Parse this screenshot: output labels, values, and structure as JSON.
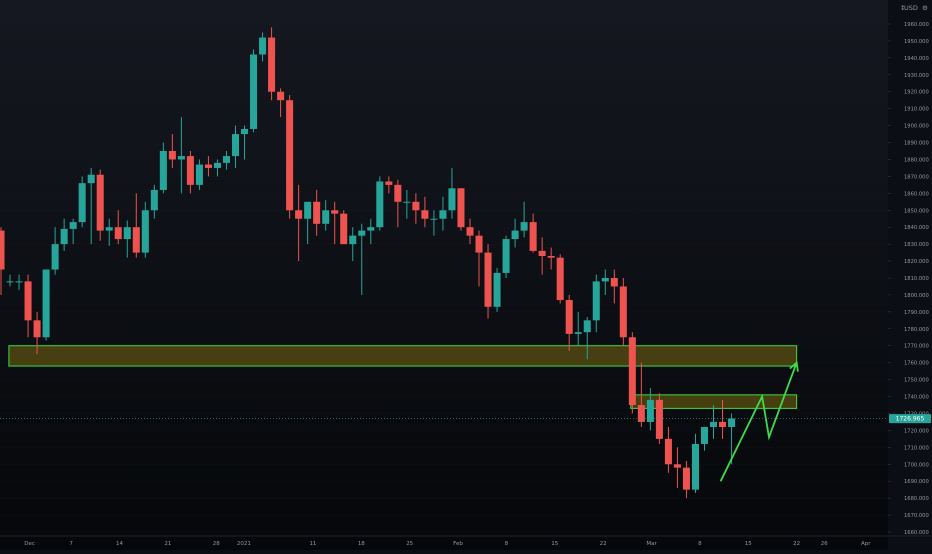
{
  "colors": {
    "background_top": "#151820",
    "background_bottom": "#05070a",
    "bull": "#26a69a",
    "bear": "#ef5350",
    "zone_fill": "#7a6a10",
    "zone_stroke": "#3ddc4a",
    "arrow": "#3ddc4a",
    "price_tag": "#26a69a",
    "axis_text": "#9598a1",
    "grid": "#1c2030"
  },
  "header": {
    "currency_label": "USD"
  },
  "price_tag": {
    "value": "1726.965"
  },
  "chart_data": {
    "type": "candlestick",
    "title": "",
    "y_unit": "USD",
    "ylim": [
      1655,
      1965
    ],
    "y_ticks": [
      1660,
      1670,
      1680,
      1690,
      1700,
      1710,
      1720,
      1730,
      1740,
      1750,
      1760,
      1770,
      1780,
      1790,
      1800,
      1810,
      1820,
      1830,
      1840,
      1850,
      1860,
      1870,
      1880,
      1890,
      1900,
      1910,
      1920,
      1930,
      1940,
      1950,
      1960
    ],
    "y_tick_labels": [
      "1660.000",
      "1670.000",
      "1680.000",
      "1690.000",
      "1700.000",
      "1710.000",
      "1720.000",
      "1730.000",
      "1740.000",
      "1750.000",
      "1760.000",
      "1770.000",
      "1780.000",
      "1790.000",
      "1800.000",
      "1810.000",
      "1820.000",
      "1830.000",
      "1840.000",
      "1850.000",
      "1860.000",
      "1870.000",
      "1880.000",
      "1890.000",
      "1900.000",
      "1910.000",
      "1920.000",
      "1930.000",
      "1940.000",
      "1950.000",
      "1960.000"
    ],
    "x_range": [
      "2020-11-27",
      "2021-04-03"
    ],
    "x_ticks": [
      {
        "date": "2020-12-01",
        "label": "Dec"
      },
      {
        "date": "2020-12-07",
        "label": "7"
      },
      {
        "date": "2020-12-14",
        "label": "14"
      },
      {
        "date": "2020-12-21",
        "label": "21"
      },
      {
        "date": "2020-12-28",
        "label": "28"
      },
      {
        "date": "2021-01-01",
        "label": "2021"
      },
      {
        "date": "2021-01-11",
        "label": "11"
      },
      {
        "date": "2021-01-18",
        "label": "18"
      },
      {
        "date": "2021-01-25",
        "label": "25"
      },
      {
        "date": "2021-02-01",
        "label": "Feb"
      },
      {
        "date": "2021-02-08",
        "label": "8"
      },
      {
        "date": "2021-02-15",
        "label": "15"
      },
      {
        "date": "2021-02-22",
        "label": "22"
      },
      {
        "date": "2021-03-01",
        "label": "Mar"
      },
      {
        "date": "2021-03-08",
        "label": "8"
      },
      {
        "date": "2021-03-15",
        "label": "15"
      },
      {
        "date": "2021-03-22",
        "label": "22"
      },
      {
        "date": "2021-03-26",
        "label": "26"
      },
      {
        "date": "2021-04-01",
        "label": "Apr"
      }
    ],
    "current_price": 1726.965,
    "candles": [
      {
        "date": "2020-11-27",
        "o": 1838,
        "h": 1840,
        "l": 1800,
        "c": 1815
      },
      {
        "date": "2020-11-30",
        "o": 1808,
        "h": 1812,
        "l": 1805,
        "c": 1808
      },
      {
        "date": "2020-12-01",
        "o": 1808,
        "h": 1812,
        "l": 1803,
        "c": 1808
      },
      {
        "date": "2020-12-01",
        "o": 1808,
        "h": 1812,
        "l": 1775,
        "c": 1785
      },
      {
        "date": "2020-12-02",
        "o": 1785,
        "h": 1790,
        "l": 1765,
        "c": 1775
      },
      {
        "date": "2020-12-03",
        "o": 1775,
        "h": 1815,
        "l": 1773,
        "c": 1815
      },
      {
        "date": "2020-12-04",
        "o": 1815,
        "h": 1840,
        "l": 1812,
        "c": 1830
      },
      {
        "date": "2020-12-04",
        "o": 1830,
        "h": 1845,
        "l": 1826,
        "c": 1839
      },
      {
        "date": "2020-12-07",
        "o": 1839,
        "h": 1845,
        "l": 1830,
        "c": 1843
      },
      {
        "date": "2020-12-08",
        "o": 1843,
        "h": 1870,
        "l": 1840,
        "c": 1866
      },
      {
        "date": "2020-12-09",
        "o": 1866,
        "h": 1875,
        "l": 1830,
        "c": 1871
      },
      {
        "date": "2020-12-10",
        "o": 1871,
        "h": 1874,
        "l": 1832,
        "c": 1838
      },
      {
        "date": "2020-12-11",
        "o": 1838,
        "h": 1845,
        "l": 1829,
        "c": 1840
      },
      {
        "date": "2020-12-11",
        "o": 1840,
        "h": 1850,
        "l": 1830,
        "c": 1833
      },
      {
        "date": "2020-12-14",
        "o": 1833,
        "h": 1844,
        "l": 1822,
        "c": 1840
      },
      {
        "date": "2020-12-15",
        "o": 1840,
        "h": 1860,
        "l": 1822,
        "c": 1825
      },
      {
        "date": "2020-12-16",
        "o": 1825,
        "h": 1855,
        "l": 1822,
        "c": 1850
      },
      {
        "date": "2020-12-17",
        "o": 1850,
        "h": 1865,
        "l": 1845,
        "c": 1862
      },
      {
        "date": "2020-12-18",
        "o": 1862,
        "h": 1890,
        "l": 1860,
        "c": 1885
      },
      {
        "date": "2020-12-18",
        "o": 1885,
        "h": 1895,
        "l": 1875,
        "c": 1880
      },
      {
        "date": "2020-12-21",
        "o": 1880,
        "h": 1905,
        "l": 1860,
        "c": 1882
      },
      {
        "date": "2020-12-22",
        "o": 1882,
        "h": 1885,
        "l": 1860,
        "c": 1865
      },
      {
        "date": "2020-12-23",
        "o": 1865,
        "h": 1880,
        "l": 1862,
        "c": 1877
      },
      {
        "date": "2020-12-24",
        "o": 1877,
        "h": 1882,
        "l": 1870,
        "c": 1875
      },
      {
        "date": "2020-12-25",
        "o": 1875,
        "h": 1880,
        "l": 1870,
        "c": 1878
      },
      {
        "date": "2020-12-25",
        "o": 1878,
        "h": 1885,
        "l": 1874,
        "c": 1882
      },
      {
        "date": "2020-12-28",
        "o": 1882,
        "h": 1900,
        "l": 1875,
        "c": 1895
      },
      {
        "date": "2020-12-29",
        "o": 1895,
        "h": 1900,
        "l": 1880,
        "c": 1898
      },
      {
        "date": "2020-12-30",
        "o": 1898,
        "h": 1945,
        "l": 1896,
        "c": 1942
      },
      {
        "date": "2020-12-31",
        "o": 1942,
        "h": 1955,
        "l": 1938,
        "c": 1952
      },
      {
        "date": "2021-01-01",
        "o": 1952,
        "h": 1958,
        "l": 1915,
        "c": 1920
      },
      {
        "date": "2021-01-04",
        "o": 1920,
        "h": 1922,
        "l": 1905,
        "c": 1915
      },
      {
        "date": "2021-01-05",
        "o": 1915,
        "h": 1918,
        "l": 1845,
        "c": 1850
      },
      {
        "date": "2021-01-06",
        "o": 1850,
        "h": 1865,
        "l": 1820,
        "c": 1845
      },
      {
        "date": "2021-01-07",
        "o": 1845,
        "h": 1855,
        "l": 1830,
        "c": 1855
      },
      {
        "date": "2021-01-08",
        "o": 1855,
        "h": 1862,
        "l": 1835,
        "c": 1842
      },
      {
        "date": "2021-01-11",
        "o": 1842,
        "h": 1856,
        "l": 1838,
        "c": 1850
      },
      {
        "date": "2021-01-12",
        "o": 1850,
        "h": 1855,
        "l": 1830,
        "c": 1848
      },
      {
        "date": "2021-01-13",
        "o": 1848,
        "h": 1850,
        "l": 1830,
        "c": 1830
      },
      {
        "date": "2021-01-14",
        "o": 1830,
        "h": 1840,
        "l": 1820,
        "c": 1835
      },
      {
        "date": "2021-01-15",
        "o": 1835,
        "h": 1842,
        "l": 1800,
        "c": 1838
      },
      {
        "date": "2021-01-18",
        "o": 1838,
        "h": 1845,
        "l": 1830,
        "c": 1840
      },
      {
        "date": "2021-01-19",
        "o": 1840,
        "h": 1870,
        "l": 1838,
        "c": 1867
      },
      {
        "date": "2021-01-20",
        "o": 1867,
        "h": 1870,
        "l": 1860,
        "c": 1865
      },
      {
        "date": "2021-01-21",
        "o": 1865,
        "h": 1868,
        "l": 1840,
        "c": 1855
      },
      {
        "date": "2021-01-22",
        "o": 1855,
        "h": 1862,
        "l": 1845,
        "c": 1855
      },
      {
        "date": "2021-01-25",
        "o": 1855,
        "h": 1860,
        "l": 1842,
        "c": 1850
      },
      {
        "date": "2021-01-26",
        "o": 1850,
        "h": 1858,
        "l": 1840,
        "c": 1845
      },
      {
        "date": "2021-01-27",
        "o": 1845,
        "h": 1850,
        "l": 1835,
        "c": 1845
      },
      {
        "date": "2021-01-28",
        "o": 1845,
        "h": 1858,
        "l": 1838,
        "c": 1850
      },
      {
        "date": "2021-01-29",
        "o": 1850,
        "h": 1875,
        "l": 1845,
        "c": 1863
      },
      {
        "date": "2021-02-01",
        "o": 1863,
        "h": 1863,
        "l": 1838,
        "c": 1840
      },
      {
        "date": "2021-02-02",
        "o": 1840,
        "h": 1845,
        "l": 1830,
        "c": 1835
      },
      {
        "date": "2021-02-03",
        "o": 1835,
        "h": 1838,
        "l": 1805,
        "c": 1825
      },
      {
        "date": "2021-02-04",
        "o": 1825,
        "h": 1830,
        "l": 1786,
        "c": 1793
      },
      {
        "date": "2021-02-05",
        "o": 1793,
        "h": 1816,
        "l": 1790,
        "c": 1813
      },
      {
        "date": "2021-02-08",
        "o": 1813,
        "h": 1835,
        "l": 1810,
        "c": 1833
      },
      {
        "date": "2021-02-09",
        "o": 1833,
        "h": 1845,
        "l": 1828,
        "c": 1838
      },
      {
        "date": "2021-02-10",
        "o": 1838,
        "h": 1855,
        "l": 1834,
        "c": 1843
      },
      {
        "date": "2021-02-11",
        "o": 1843,
        "h": 1848,
        "l": 1825,
        "c": 1826
      },
      {
        "date": "2021-02-12",
        "o": 1826,
        "h": 1834,
        "l": 1812,
        "c": 1823
      },
      {
        "date": "2021-02-15",
        "o": 1823,
        "h": 1828,
        "l": 1815,
        "c": 1822
      },
      {
        "date": "2021-02-16",
        "o": 1822,
        "h": 1824,
        "l": 1795,
        "c": 1797
      },
      {
        "date": "2021-02-17",
        "o": 1797,
        "h": 1800,
        "l": 1767,
        "c": 1777
      },
      {
        "date": "2021-02-18",
        "o": 1777,
        "h": 1790,
        "l": 1770,
        "c": 1778
      },
      {
        "date": "2021-02-19",
        "o": 1778,
        "h": 1787,
        "l": 1762,
        "c": 1785
      },
      {
        "date": "2021-02-22",
        "o": 1785,
        "h": 1812,
        "l": 1778,
        "c": 1808
      },
      {
        "date": "2021-02-23",
        "o": 1808,
        "h": 1815,
        "l": 1800,
        "c": 1810
      },
      {
        "date": "2021-02-24",
        "o": 1810,
        "h": 1815,
        "l": 1795,
        "c": 1805
      },
      {
        "date": "2021-02-25",
        "o": 1805,
        "h": 1810,
        "l": 1770,
        "c": 1775
      },
      {
        "date": "2021-02-26",
        "o": 1775,
        "h": 1778,
        "l": 1730,
        "c": 1735
      },
      {
        "date": "2021-03-01",
        "o": 1735,
        "h": 1760,
        "l": 1722,
        "c": 1725
      },
      {
        "date": "2021-03-02",
        "o": 1725,
        "h": 1745,
        "l": 1720,
        "c": 1738
      },
      {
        "date": "2021-03-03",
        "o": 1738,
        "h": 1742,
        "l": 1712,
        "c": 1715
      },
      {
        "date": "2021-03-04",
        "o": 1715,
        "h": 1722,
        "l": 1695,
        "c": 1700
      },
      {
        "date": "2021-03-05",
        "o": 1700,
        "h": 1710,
        "l": 1686,
        "c": 1698
      },
      {
        "date": "2021-03-08",
        "o": 1698,
        "h": 1702,
        "l": 1680,
        "c": 1685
      },
      {
        "date": "2021-03-09",
        "o": 1685,
        "h": 1718,
        "l": 1683,
        "c": 1712
      },
      {
        "date": "2021-03-10",
        "o": 1712,
        "h": 1722,
        "l": 1708,
        "c": 1722
      },
      {
        "date": "2021-03-11",
        "o": 1722,
        "h": 1735,
        "l": 1715,
        "c": 1725
      },
      {
        "date": "2021-03-12",
        "o": 1725,
        "h": 1738,
        "l": 1715,
        "c": 1722
      },
      {
        "date": "2021-03-12",
        "o": 1722,
        "h": 1730,
        "l": 1700,
        "c": 1727
      }
    ],
    "zones": [
      {
        "name": "upper-demand-zone",
        "y_from": 1758,
        "y_to": 1770,
        "x_from": "2020-11-28",
        "x_to": "2021-03-22"
      },
      {
        "name": "resistance-zone",
        "y_from": 1733,
        "y_to": 1741,
        "x_from": "2021-02-26",
        "x_to": "2021-03-22"
      }
    ],
    "projection": {
      "points": [
        {
          "date": "2021-03-11",
          "price": 1690
        },
        {
          "date": "2021-03-17",
          "price": 1740
        },
        {
          "date": "2021-03-18",
          "price": 1716
        },
        {
          "date": "2021-03-22",
          "price": 1760
        }
      ]
    }
  }
}
